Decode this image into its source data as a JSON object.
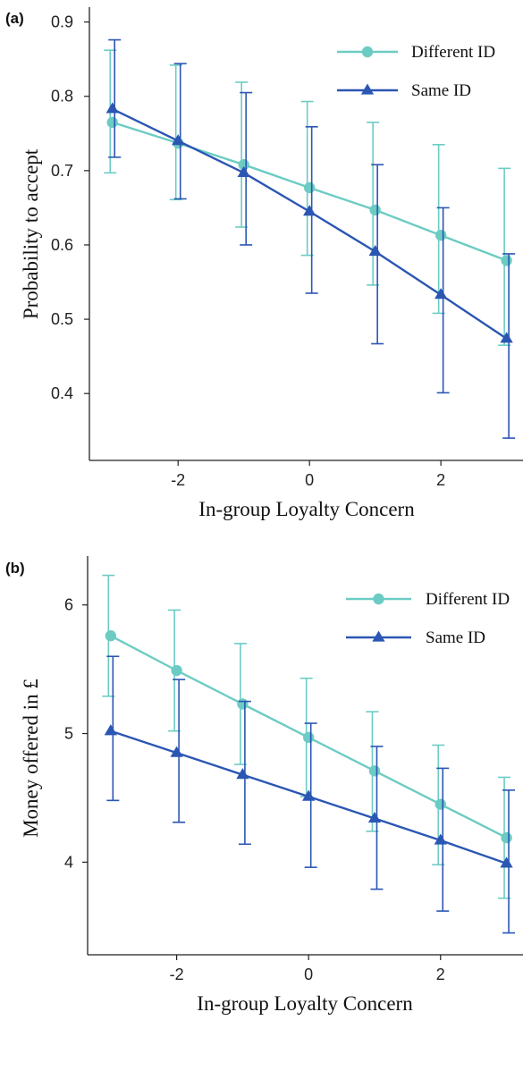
{
  "chart_data": [
    {
      "panel": "(a)",
      "type": "line",
      "xlabel": "In-group Loyalty Concern",
      "ylabel": "Probability to accept",
      "xlim": [
        -3.35,
        3.25
      ],
      "ylim": [
        0.31,
        0.92
      ],
      "xticks": [
        -2,
        0,
        2
      ],
      "xtick_labels": [
        "-2",
        "0",
        "2"
      ],
      "yticks": [
        0.4,
        0.5,
        0.6,
        0.7,
        0.8,
        0.9
      ],
      "ytick_labels": [
        "0.4",
        "0.5",
        "0.6",
        "0.7",
        "0.8",
        "0.9"
      ],
      "grid": false,
      "legend_position": "top-right",
      "x": [
        -3,
        -2,
        -1,
        0,
        1,
        2,
        3
      ],
      "series": [
        {
          "name": "Different ID",
          "color": "#6cccc4",
          "marker": "circle",
          "values": [
            0.765,
            0.737,
            0.708,
            0.677,
            0.647,
            0.613,
            0.579
          ],
          "error_low": [
            0.697,
            0.661,
            0.624,
            0.586,
            0.546,
            0.508,
            0.465
          ],
          "error_high": [
            0.862,
            0.842,
            0.819,
            0.793,
            0.765,
            0.735,
            0.703
          ]
        },
        {
          "name": "Same ID",
          "color": "#2b56b3",
          "marker": "triangle",
          "values": [
            0.783,
            0.74,
            0.697,
            0.645,
            0.591,
            0.533,
            0.474
          ],
          "error_low": [
            0.718,
            0.662,
            0.6,
            0.535,
            0.467,
            0.401,
            0.34
          ],
          "error_high": [
            0.876,
            0.844,
            0.805,
            0.759,
            0.708,
            0.65,
            0.588
          ]
        }
      ]
    },
    {
      "panel": "(b)",
      "type": "line",
      "xlabel": "In-group Loyalty Concern",
      "ylabel": "Money offered in £",
      "xlim": [
        -3.35,
        3.25
      ],
      "ylim": [
        3.28,
        6.38
      ],
      "xticks": [
        -2,
        0,
        2
      ],
      "xtick_labels": [
        "-2",
        "0",
        "2"
      ],
      "yticks": [
        4,
        5,
        6
      ],
      "ytick_labels": [
        "4",
        "5",
        "6"
      ],
      "grid": false,
      "legend_position": "top-right",
      "x": [
        -3,
        -2,
        -1,
        0,
        1,
        2,
        3
      ],
      "series": [
        {
          "name": "Different ID",
          "color": "#6cccc4",
          "marker": "circle",
          "values": [
            5.76,
            5.49,
            5.23,
            4.97,
            4.71,
            4.45,
            4.19
          ],
          "error_low": [
            5.29,
            5.02,
            4.76,
            4.51,
            4.24,
            3.98,
            3.72
          ],
          "error_high": [
            6.23,
            5.96,
            5.7,
            5.43,
            5.17,
            4.91,
            4.66
          ]
        },
        {
          "name": "Same ID",
          "color": "#2b56b3",
          "marker": "triangle",
          "values": [
            5.02,
            4.85,
            4.68,
            4.51,
            4.34,
            4.17,
            3.99
          ],
          "error_low": [
            4.48,
            4.31,
            4.14,
            3.96,
            3.79,
            3.62,
            3.45
          ],
          "error_high": [
            5.6,
            5.42,
            5.25,
            5.08,
            4.9,
            4.73,
            4.56
          ]
        }
      ]
    }
  ]
}
